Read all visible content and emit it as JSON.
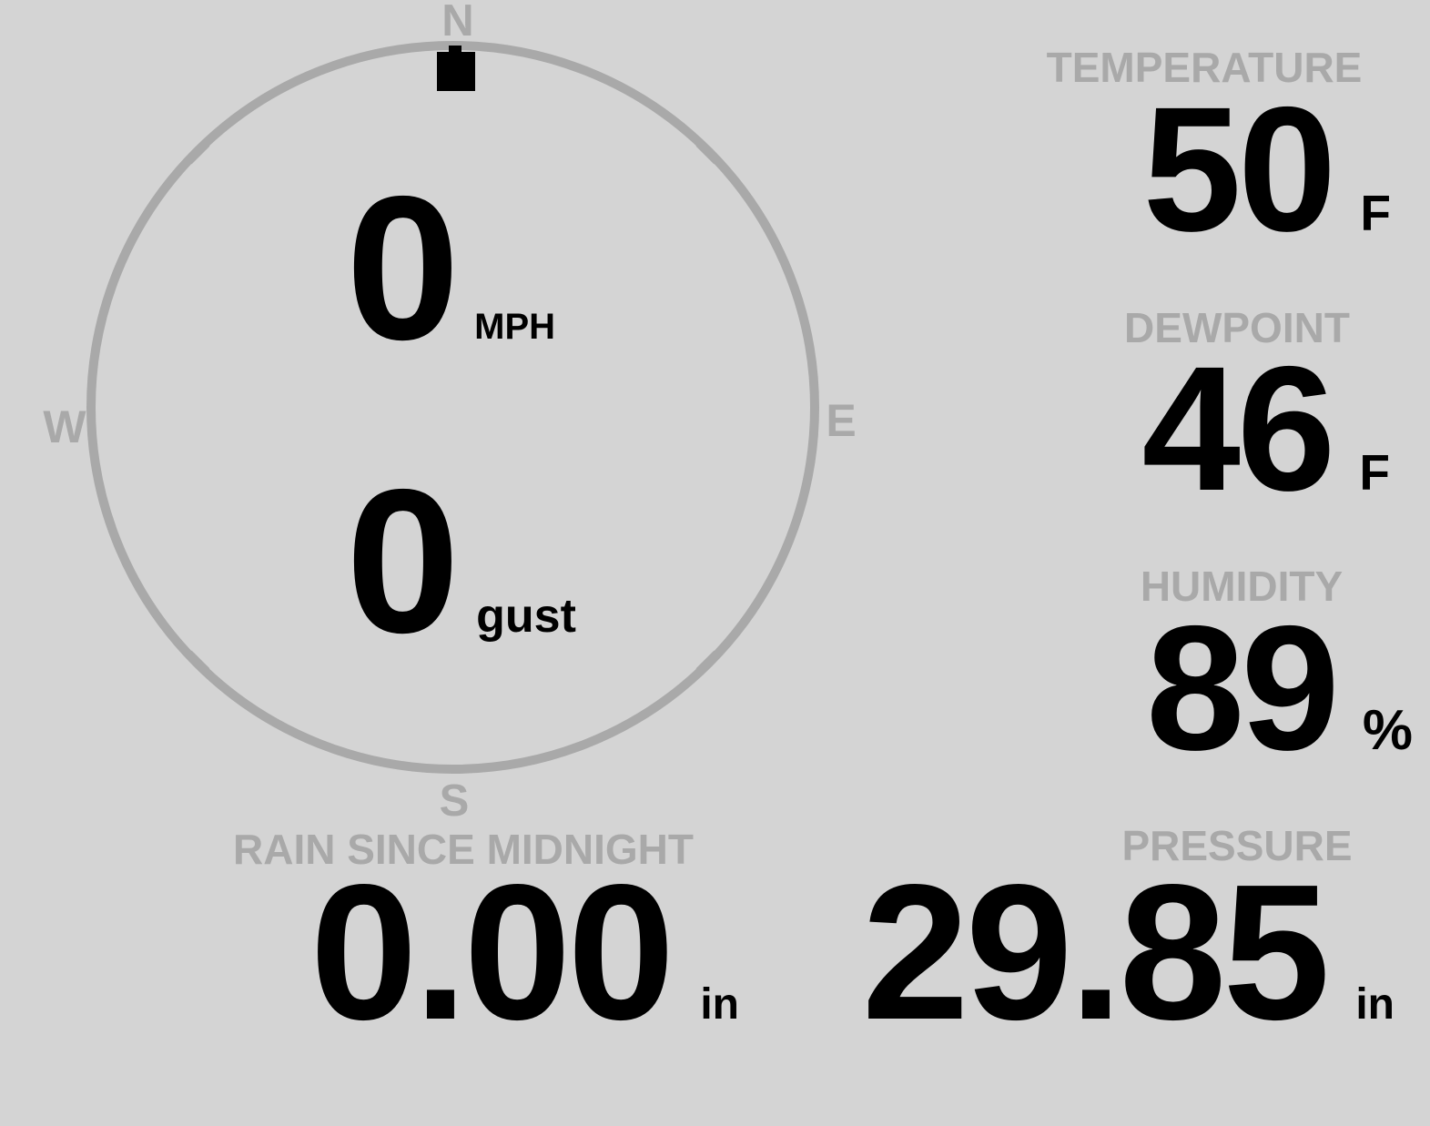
{
  "colors": {
    "background": "#d4d4d4",
    "muted_gray": "#a9a9a9",
    "value_black": "#000000"
  },
  "compass": {
    "north": "N",
    "east": "E",
    "south": "S",
    "west": "W",
    "wind_direction": "N"
  },
  "wind": {
    "speed_value": "0",
    "speed_unit": "MPH",
    "gust_value": "0",
    "gust_unit": "gust"
  },
  "temperature": {
    "label": "TEMPERATURE",
    "value": "50",
    "unit": "F"
  },
  "dewpoint": {
    "label": "DEWPOINT",
    "value": "46",
    "unit": "F"
  },
  "humidity": {
    "label": "HUMIDITY",
    "value": "89",
    "unit": "%"
  },
  "rain": {
    "label": "RAIN SINCE MIDNIGHT",
    "value": "0.00",
    "unit": "in"
  },
  "pressure": {
    "label": "PRESSURE",
    "value": "29.85",
    "unit": "in"
  }
}
